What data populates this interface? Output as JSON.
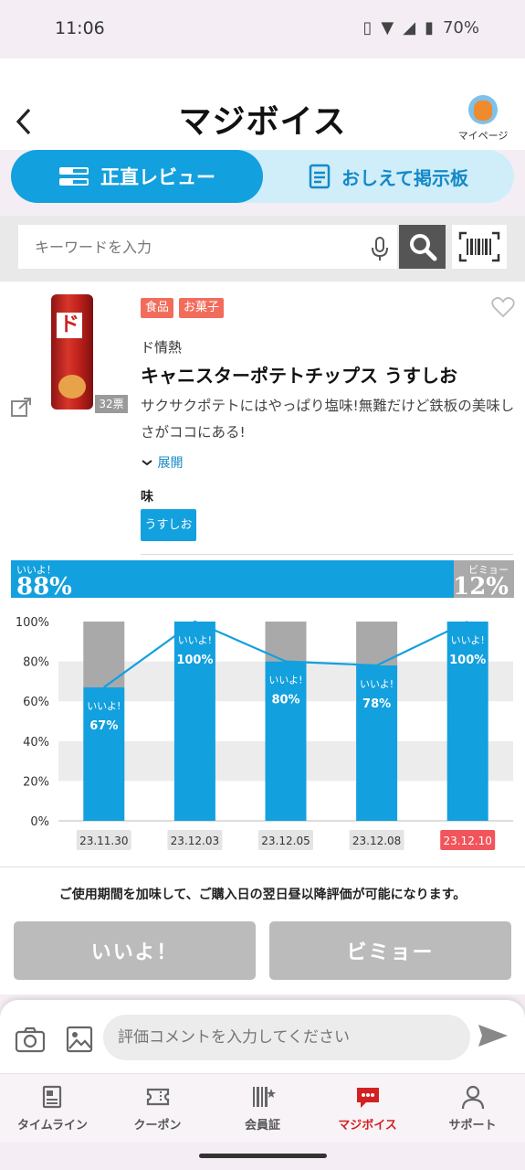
{
  "status": {
    "time": "11:06",
    "battery": "70%"
  },
  "header": {
    "title": "マジボイス",
    "mypage_label": "マイページ"
  },
  "tabs": {
    "review": "正直レビュー",
    "board": "おしえて掲示板"
  },
  "search": {
    "placeholder": "キーワードを入力"
  },
  "product": {
    "tags": [
      "食品",
      "お菓子"
    ],
    "votes": "32票",
    "maker": "ド情熱",
    "name": "キャニスターポテトチップス うすしお",
    "description": "サクサクポテトにはやっぱり塩味!無難だけど鉄板の美味しさがココにある!",
    "expand_label": "展開",
    "flavor_label": "味",
    "flavor": "うすしお"
  },
  "ratio": {
    "good_label": "いいよ！",
    "good_pct": "88%",
    "good_value": 88,
    "bad_label": "ビミョー",
    "bad_pct": "12%",
    "bad_value": 12
  },
  "chart_data": {
    "type": "bar",
    "categories": [
      "23.11.30",
      "23.12.03",
      "23.12.05",
      "23.12.08",
      "23.12.10"
    ],
    "series": [
      {
        "name": "いいよ!",
        "values": [
          67,
          100,
          80,
          78,
          100
        ]
      }
    ],
    "bar_label": "いいよ!",
    "y_ticks": [
      "0%",
      "20%",
      "40%",
      "60%",
      "80%",
      "100%"
    ],
    "ylim": [
      0,
      100
    ],
    "highlight_category": "23.12.10",
    "colors": {
      "good": "#13a0de",
      "bad": "#a9a9a9",
      "line": "#13a0de",
      "highlight": "#f2545b"
    },
    "title": "",
    "xlabel": "",
    "ylabel": ""
  },
  "notice": "ご使用期間を加味して、ご購入日の翌日昼以降評価が可能になります。",
  "buttons": {
    "good": "いいよ！",
    "bad": "ビミョー"
  },
  "comment": {
    "placeholder": "評価コメントを入力してください"
  },
  "nav": [
    {
      "label": "タイムライン",
      "icon": "timeline-icon"
    },
    {
      "label": "クーポン",
      "icon": "coupon-icon"
    },
    {
      "label": "会員証",
      "icon": "member-card-icon"
    },
    {
      "label": "マジボイス",
      "icon": "majivoice-icon"
    },
    {
      "label": "サポート",
      "icon": "support-icon"
    }
  ]
}
